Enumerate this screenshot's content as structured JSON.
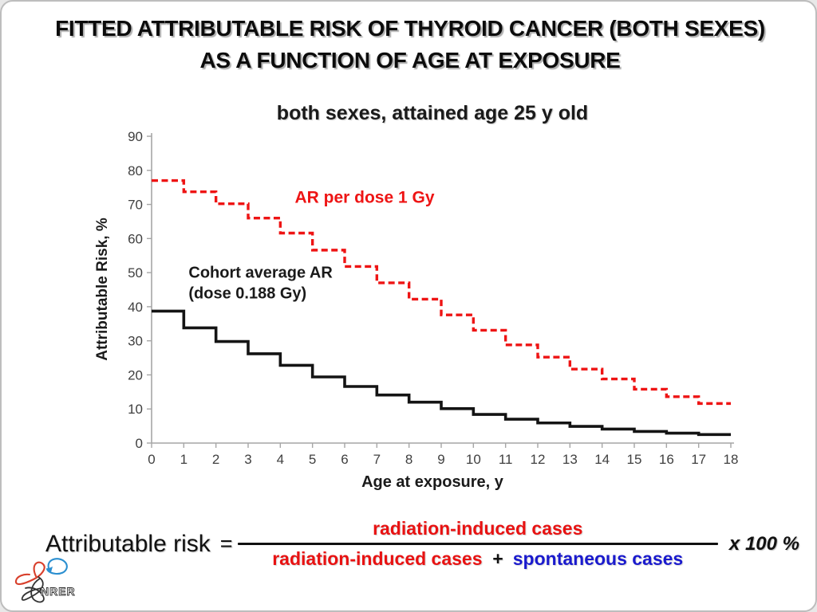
{
  "slide": {
    "title_line1": "FITTED ATTRIBUTABLE RISK OF THYROID CANCER (BOTH SEXES)",
    "title_line2": "AS A FUNCTION OF AGE AT EXPOSURE"
  },
  "chart_data": {
    "type": "line",
    "line_style": "step-post",
    "title": "both sexes, attained age 25 y old",
    "xlabel": "Age at exposure, y",
    "ylabel": "Attributable Risk, %",
    "xlim": [
      0,
      18
    ],
    "ylim": [
      0,
      90
    ],
    "x_ticks": [
      0,
      1,
      2,
      3,
      4,
      5,
      6,
      7,
      8,
      9,
      10,
      11,
      12,
      13,
      14,
      15,
      16,
      17,
      18
    ],
    "y_ticks": [
      0,
      10,
      20,
      30,
      40,
      50,
      60,
      70,
      80,
      90
    ],
    "grid": false,
    "legend_position": "inline-annotations",
    "x_bin_starts": [
      0,
      1,
      2,
      3,
      4,
      5,
      6,
      7,
      8,
      9,
      10,
      11,
      12,
      13,
      14,
      15,
      16,
      17
    ],
    "series": [
      {
        "name": "AR per dose 1 Gy",
        "color": "#ee1414",
        "dash": "dashed",
        "width": 3.4,
        "values": [
          77,
          73.7,
          70.2,
          66,
          61.6,
          56.6,
          51.8,
          47,
          42.2,
          37.6,
          33.1,
          28.8,
          25.2,
          21.7,
          18.8,
          15.8,
          13.6,
          11.6
        ]
      },
      {
        "name": "Cohort average AR (dose 0.188 Gy)",
        "color": "#141414",
        "dash": "solid",
        "width": 3.6,
        "values": [
          38.7,
          33.8,
          29.8,
          26.2,
          22.8,
          19.4,
          16.6,
          14.1,
          12,
          10.1,
          8.4,
          7,
          5.9,
          4.9,
          4.1,
          3.4,
          2.9,
          2.5
        ]
      }
    ],
    "annotations": [
      {
        "lines": [
          "AR per dose 1 Gy"
        ],
        "x": 4.45,
        "y": 70.5,
        "color": "#ee1414",
        "size": 21,
        "weight": 600
      },
      {
        "lines": [
          "Cohort average AR",
          "(dose 0.188 Gy)"
        ],
        "x": 1.15,
        "y": 48.5,
        "color": "#1a1a1a",
        "size": 20,
        "weight": 600
      }
    ],
    "axis_color": "#a6a6a6",
    "tick_label_color": "#404040"
  },
  "formula": {
    "lhs": "Attributable risk",
    "equals": "=",
    "numerator": "radiation-induced cases",
    "denominator_term1": "radiation-induced cases",
    "denominator_plus": "+",
    "denominator_term2": "spontaneous cases",
    "multiplier": "x  100 %"
  },
  "logo": {
    "text": "NRER"
  }
}
